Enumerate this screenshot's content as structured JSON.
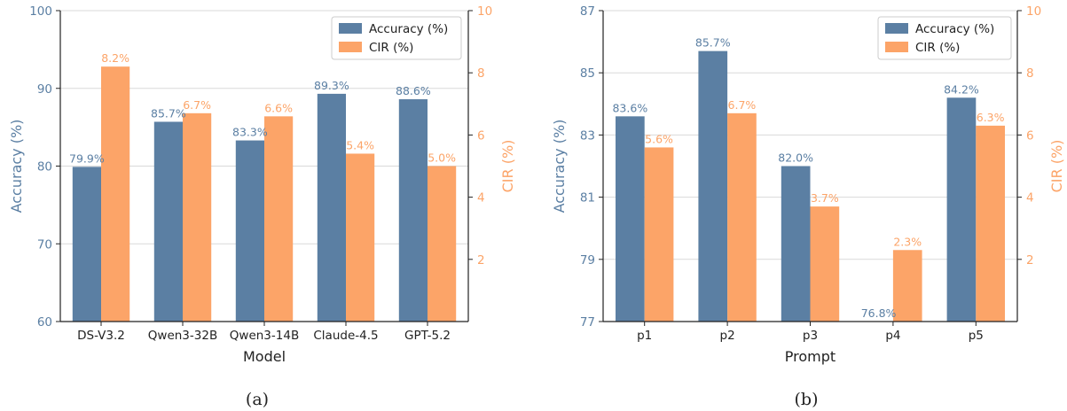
{
  "colors": {
    "accuracy": "#5b7fa3",
    "cir": "#fca468",
    "axis_text": "#222222",
    "grid": "#d9d9d9"
  },
  "chart_data": [
    {
      "type": "bar",
      "caption": "(a)",
      "xlabel": "Model",
      "ylabel": "Accuracy (%)",
      "y2label": "CIR (%)",
      "ylim": [
        60,
        100
      ],
      "y2lim": [
        0,
        10
      ],
      "yticks": [
        60,
        70,
        80,
        90,
        100
      ],
      "y2ticks": [
        2,
        4,
        6,
        8,
        10
      ],
      "grid": true,
      "legend_position": "top-right",
      "categories": [
        "DS-V3.2",
        "Qwen3-32B",
        "Qwen3-14B",
        "Claude-4.5",
        "GPT-5.2"
      ],
      "series": [
        {
          "name": "Accuracy (%)",
          "axis": "left",
          "values": [
            79.9,
            85.7,
            83.3,
            89.3,
            88.6
          ],
          "labels": [
            "79.9%",
            "85.7%",
            "83.3%",
            "89.3%",
            "88.6%"
          ]
        },
        {
          "name": "CIR (%)",
          "axis": "right",
          "values": [
            8.2,
            6.7,
            6.6,
            5.4,
            5.0
          ],
          "labels": [
            "8.2%",
            "6.7%",
            "6.6%",
            "5.4%",
            "5.0%"
          ]
        }
      ]
    },
    {
      "type": "bar",
      "caption": "(b)",
      "xlabel": "Prompt",
      "ylabel": "Accuracy (%)",
      "y2label": "CIR (%)",
      "ylim": [
        77,
        87
      ],
      "y2lim": [
        0,
        10
      ],
      "yticks": [
        77,
        79,
        81,
        83,
        85,
        87
      ],
      "y2ticks": [
        2,
        4,
        6,
        8,
        10
      ],
      "grid": true,
      "legend_position": "top-right",
      "categories": [
        "p1",
        "p2",
        "p3",
        "p4",
        "p5"
      ],
      "series": [
        {
          "name": "Accuracy (%)",
          "axis": "left",
          "values": [
            83.6,
            85.7,
            82.0,
            76.8,
            84.2
          ],
          "labels": [
            "83.6%",
            "85.7%",
            "82.0%",
            "76.8%",
            "84.2%"
          ]
        },
        {
          "name": "CIR (%)",
          "axis": "right",
          "values": [
            5.6,
            6.7,
            3.7,
            2.3,
            6.3
          ],
          "labels": [
            "5.6%",
            "6.7%",
            "3.7%",
            "2.3%",
            "6.3%"
          ]
        }
      ]
    }
  ]
}
